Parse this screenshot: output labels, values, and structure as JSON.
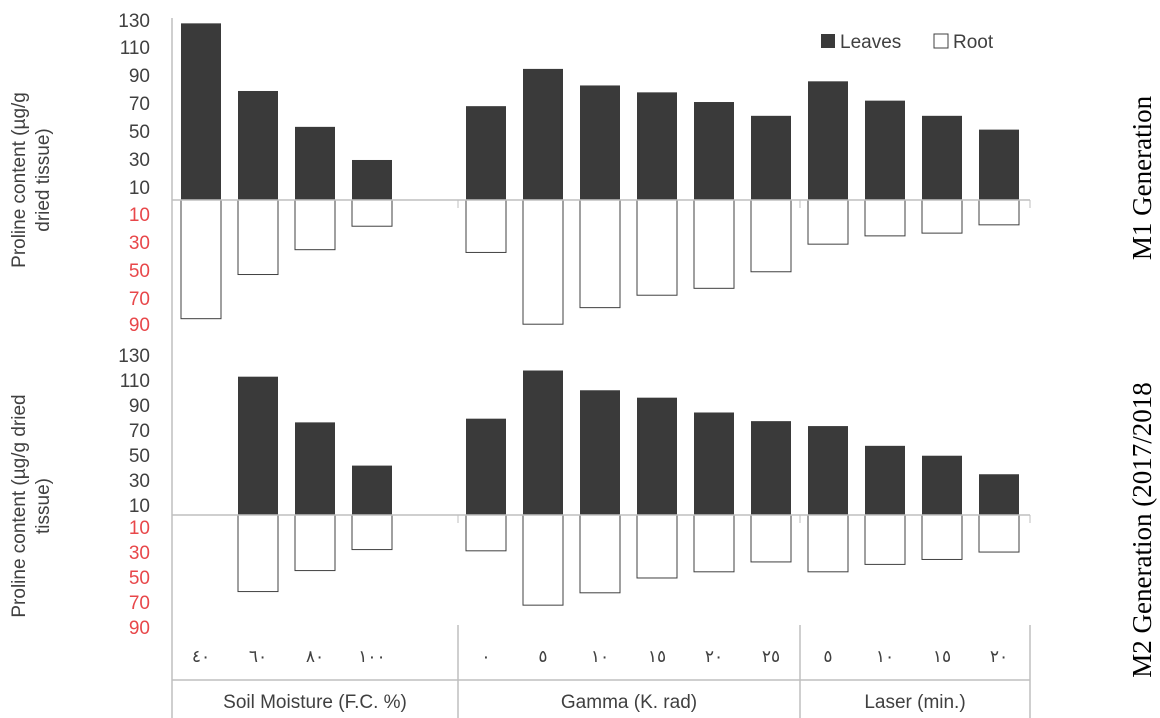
{
  "chart_data": [
    {
      "type": "bar",
      "panel_label": "M1  Generation",
      "ylabel_lines": [
        "Proline content (µg/g",
        "dried tissue)"
      ],
      "positive_ticks": [
        "130",
        "110",
        "90",
        "70",
        "50",
        "30",
        "10"
      ],
      "negative_ticks": [
        "10",
        "30",
        "50",
        "70",
        "90"
      ],
      "ylim": [
        -90,
        130
      ],
      "legend": [
        "Leaves",
        "Root"
      ],
      "legend_position": "top-right",
      "series": [
        {
          "name": "Leaves",
          "values": [
            128,
            79,
            53,
            29,
            68,
            95,
            83,
            78,
            71,
            61,
            86,
            72,
            61,
            51
          ]
        },
        {
          "name": "Root",
          "values": [
            -86,
            -54,
            -36,
            -19,
            -38,
            -90,
            -78,
            -69,
            -64,
            -52,
            -32,
            -26,
            -24,
            -18
          ]
        }
      ]
    },
    {
      "type": "bar",
      "panel_label": "M2 Generation (2017/2018",
      "ylabel_lines": [
        "Proline content (µg/g dried",
        "tissue)"
      ],
      "positive_ticks": [
        "130",
        "110",
        "90",
        "70",
        "50",
        "30",
        "10"
      ],
      "negative_ticks": [
        "10",
        "30",
        "50",
        "70",
        "90"
      ],
      "ylim": [
        -90,
        130
      ],
      "series": [
        {
          "name": "Leaves",
          "values": [
            null,
            112,
            75,
            40,
            78,
            117,
            101,
            95,
            83,
            76,
            72,
            56,
            48,
            33
          ]
        },
        {
          "name": "Root",
          "values": [
            null,
            -62,
            -45,
            -28,
            -29,
            -73,
            -63,
            -51,
            -46,
            -38,
            -46,
            -40,
            -36,
            -30
          ]
        }
      ]
    }
  ],
  "categories": [
    "٤٠",
    "٦٠",
    "٨٠",
    "١٠٠",
    "٠",
    "٥",
    "١٠",
    "١٥",
    "٢٠",
    "٢٥",
    "٥",
    "١٠",
    "١٥",
    "٢٠"
  ],
  "groups": [
    {
      "label": "Soil Moisture (F.C. %)"
    },
    {
      "label": "Gamma (K. rad)"
    },
    {
      "label": "Laser (min.)"
    }
  ],
  "colors": {
    "leaves": "#3a3a3a",
    "root": "#ffffff",
    "axis": "#bfbfbf",
    "tick": "#404040",
    "negative_tick": "#e8474a"
  }
}
